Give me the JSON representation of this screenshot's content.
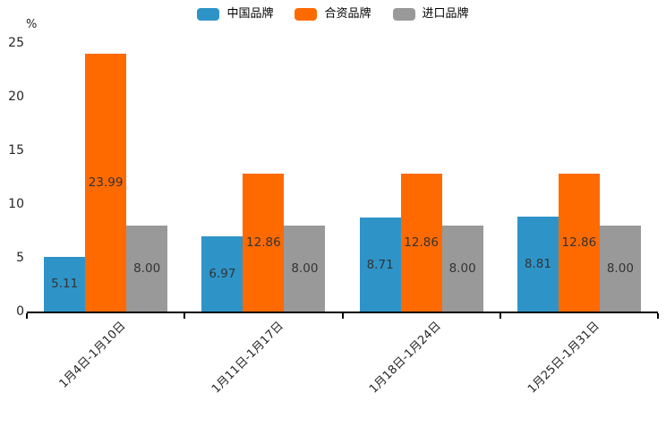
{
  "chart_data": {
    "type": "bar",
    "title": "",
    "xlabel": "",
    "ylabel": "%",
    "ylim": [
      0,
      25
    ],
    "yticks": [
      0,
      5,
      10,
      15,
      20,
      25
    ],
    "grid": false,
    "legend_position": "top-center",
    "bar_label_color": "#333333",
    "axis_color": "#000000",
    "categories": [
      "1月4日-1月10日",
      "1月11日-1月17日",
      "1月18日-1月24日",
      "1月25日-1月31日"
    ],
    "series": [
      {
        "name": "中国品牌",
        "color": "#2E94C8",
        "values": [
          5.11,
          6.97,
          8.71,
          8.81
        ],
        "labels": [
          "5.11",
          "6.97",
          "8.71",
          "8.81"
        ]
      },
      {
        "name": "合资品牌",
        "color": "#FF6A00",
        "values": [
          23.99,
          12.86,
          12.86,
          12.86
        ],
        "labels": [
          "23.99",
          "12.86",
          "12.86",
          "12.86"
        ]
      },
      {
        "name": "进口品牌",
        "color": "#999999",
        "values": [
          8.0,
          8.0,
          8.0,
          8.0
        ],
        "labels": [
          "8.00",
          "8.00",
          "8.00",
          "8.00"
        ]
      }
    ]
  }
}
